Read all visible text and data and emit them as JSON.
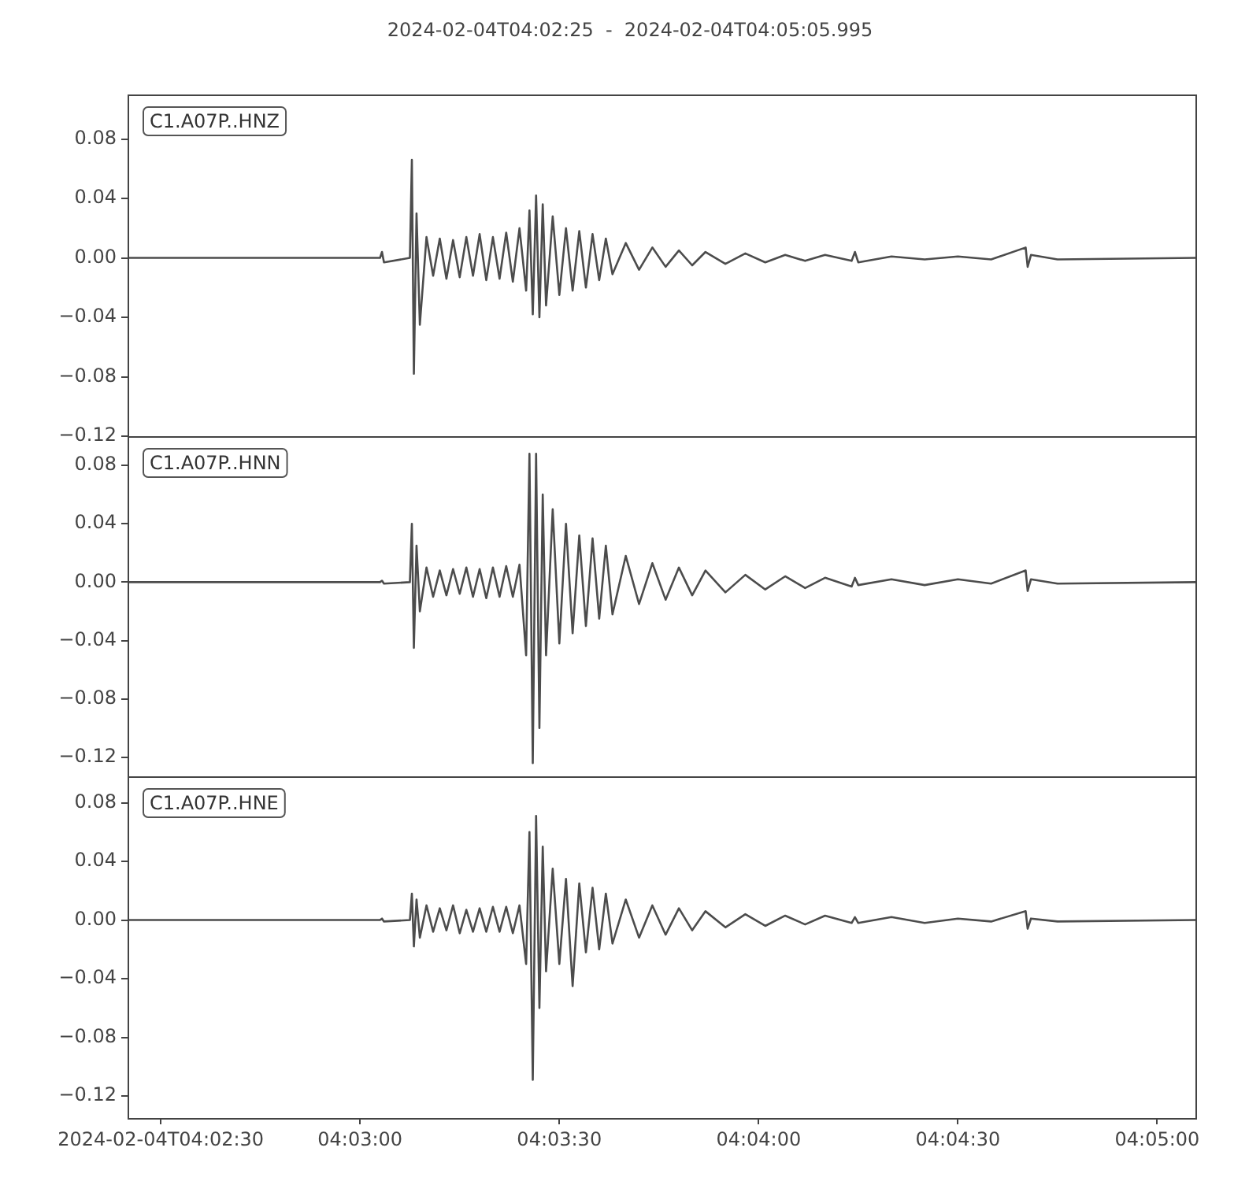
{
  "chart_data": [
    {
      "type": "line",
      "title": "2024-02-04T04:02:25  -  2024-02-04T04:05:05.995",
      "annotations": [
        "C1.A07P..HNZ"
      ],
      "tick_labels": "y",
      "grid": false,
      "legend": false,
      "marker": "none",
      "line_style": "solid",
      "xlim": [
        "2024-02-04T04:02:25",
        "2024-02-04T04:05:05.995"
      ],
      "ylim": [
        -0.12,
        0.11
      ],
      "yticks": [
        {
          "value": -0.12,
          "label": "−0.12"
        },
        {
          "value": -0.08,
          "label": "−0.08"
        },
        {
          "value": -0.04,
          "label": "−0.04"
        },
        {
          "value": 0,
          "label": "0.00"
        },
        {
          "value": 0.04,
          "label": "0.04"
        },
        {
          "value": 0.08,
          "label": "0.08"
        }
      ],
      "x": [
        "2024-02-04T04:02:25",
        "2024-02-04T04:03:03.0",
        "2024-02-04T04:03:03.3",
        "2024-02-04T04:03:03.6",
        "2024-02-04T04:03:07.5",
        "2024-02-04T04:03:07.8",
        "2024-02-04T04:03:08.1",
        "2024-02-04T04:03:08.5",
        "2024-02-04T04:03:09",
        "2024-02-04T04:03:10",
        "2024-02-04T04:03:11",
        "2024-02-04T04:03:12",
        "2024-02-04T04:03:13",
        "2024-02-04T04:03:14",
        "2024-02-04T04:03:15",
        "2024-02-04T04:03:16",
        "2024-02-04T04:03:17",
        "2024-02-04T04:03:18",
        "2024-02-04T04:03:19",
        "2024-02-04T04:03:20",
        "2024-02-04T04:03:21",
        "2024-02-04T04:03:22",
        "2024-02-04T04:03:23",
        "2024-02-04T04:03:24",
        "2024-02-04T04:03:25",
        "2024-02-04T04:03:25.5",
        "2024-02-04T04:03:26",
        "2024-02-04T04:03:26.5",
        "2024-02-04T04:03:27",
        "2024-02-04T04:03:27.5",
        "2024-02-04T04:03:28",
        "2024-02-04T04:03:29",
        "2024-02-04T04:03:30",
        "2024-02-04T04:03:31",
        "2024-02-04T04:03:32",
        "2024-02-04T04:03:33",
        "2024-02-04T04:03:34",
        "2024-02-04T04:03:35",
        "2024-02-04T04:03:36",
        "2024-02-04T04:03:37",
        "2024-02-04T04:03:38",
        "2024-02-04T04:03:40",
        "2024-02-04T04:03:42",
        "2024-02-04T04:03:44",
        "2024-02-04T04:03:46",
        "2024-02-04T04:03:48",
        "2024-02-04T04:03:50",
        "2024-02-04T04:03:52",
        "2024-02-04T04:03:55",
        "2024-02-04T04:03:58",
        "2024-02-04T04:04:01",
        "2024-02-04T04:04:04",
        "2024-02-04T04:04:07",
        "2024-02-04T04:04:10",
        "2024-02-04T04:04:14",
        "2024-02-04T04:04:14.5",
        "2024-02-04T04:04:15",
        "2024-02-04T04:04:20",
        "2024-02-04T04:04:25",
        "2024-02-04T04:04:30",
        "2024-02-04T04:04:35",
        "2024-02-04T04:04:40.2",
        "2024-02-04T04:04:40.5",
        "2024-02-04T04:04:41",
        "2024-02-04T04:04:45",
        "2024-02-04T04:05:05.9"
      ],
      "series": [
        {
          "color": "#4c4c4c",
          "values": [
            0,
            0,
            0.004,
            -0.003,
            0,
            0.066,
            -0.078,
            0.03,
            -0.045,
            0.014,
            -0.012,
            0.013,
            -0.014,
            0.012,
            -0.013,
            0.014,
            -0.012,
            0.016,
            -0.015,
            0.014,
            -0.014,
            0.017,
            -0.016,
            0.02,
            -0.022,
            0.032,
            -0.038,
            0.042,
            -0.04,
            0.036,
            -0.032,
            0.028,
            -0.025,
            0.02,
            -0.022,
            0.018,
            -0.02,
            0.016,
            -0.015,
            0.013,
            -0.011,
            0.01,
            -0.008,
            0.007,
            -0.006,
            0.005,
            -0.005,
            0.004,
            -0.004,
            0.003,
            -0.003,
            0.002,
            -0.002,
            0.002,
            -0.002,
            0.004,
            -0.003,
            0.001,
            -0.001,
            0.001,
            -0.001,
            0.007,
            -0.006,
            0.002,
            -0.001,
            0
          ]
        }
      ]
    },
    {
      "type": "line",
      "annotations": [
        "C1.A07P..HNN"
      ],
      "tick_labels": "y",
      "grid": false,
      "legend": false,
      "marker": "none",
      "line_style": "solid",
      "xlim": [
        "2024-02-04T04:02:25",
        "2024-02-04T04:05:05.995"
      ],
      "ylim": [
        -0.133,
        0.1
      ],
      "yticks": [
        {
          "value": -0.12,
          "label": "−0.12"
        },
        {
          "value": -0.08,
          "label": "−0.08"
        },
        {
          "value": -0.04,
          "label": "−0.04"
        },
        {
          "value": 0,
          "label": "0.00"
        },
        {
          "value": 0.04,
          "label": "0.04"
        },
        {
          "value": 0.08,
          "label": "0.08"
        }
      ],
      "x": [
        "2024-02-04T04:02:25",
        "2024-02-04T04:03:03.0",
        "2024-02-04T04:03:03.3",
        "2024-02-04T04:03:03.6",
        "2024-02-04T04:03:07.5",
        "2024-02-04T04:03:07.8",
        "2024-02-04T04:03:08.1",
        "2024-02-04T04:03:08.5",
        "2024-02-04T04:03:09",
        "2024-02-04T04:03:10",
        "2024-02-04T04:03:11",
        "2024-02-04T04:03:12",
        "2024-02-04T04:03:13",
        "2024-02-04T04:03:14",
        "2024-02-04T04:03:15",
        "2024-02-04T04:03:16",
        "2024-02-04T04:03:17",
        "2024-02-04T04:03:18",
        "2024-02-04T04:03:19",
        "2024-02-04T04:03:20",
        "2024-02-04T04:03:21",
        "2024-02-04T04:03:22",
        "2024-02-04T04:03:23",
        "2024-02-04T04:03:24",
        "2024-02-04T04:03:25",
        "2024-02-04T04:03:25.5",
        "2024-02-04T04:03:26",
        "2024-02-04T04:03:26.5",
        "2024-02-04T04:03:27",
        "2024-02-04T04:03:27.5",
        "2024-02-04T04:03:28",
        "2024-02-04T04:03:29",
        "2024-02-04T04:03:30",
        "2024-02-04T04:03:31",
        "2024-02-04T04:03:32",
        "2024-02-04T04:03:33",
        "2024-02-04T04:03:34",
        "2024-02-04T04:03:35",
        "2024-02-04T04:03:36",
        "2024-02-04T04:03:37",
        "2024-02-04T04:03:38",
        "2024-02-04T04:03:40",
        "2024-02-04T04:03:42",
        "2024-02-04T04:03:44",
        "2024-02-04T04:03:46",
        "2024-02-04T04:03:48",
        "2024-02-04T04:03:50",
        "2024-02-04T04:03:52",
        "2024-02-04T04:03:55",
        "2024-02-04T04:03:58",
        "2024-02-04T04:04:01",
        "2024-02-04T04:04:04",
        "2024-02-04T04:04:07",
        "2024-02-04T04:04:10",
        "2024-02-04T04:04:14",
        "2024-02-04T04:04:14.5",
        "2024-02-04T04:04:15",
        "2024-02-04T04:04:20",
        "2024-02-04T04:04:25",
        "2024-02-04T04:04:30",
        "2024-02-04T04:04:35",
        "2024-02-04T04:04:40.2",
        "2024-02-04T04:04:40.5",
        "2024-02-04T04:04:41",
        "2024-02-04T04:04:45",
        "2024-02-04T04:05:05.9"
      ],
      "series": [
        {
          "color": "#4c4c4c",
          "values": [
            0,
            0,
            0.001,
            -0.001,
            0,
            0.04,
            -0.045,
            0.025,
            -0.02,
            0.01,
            -0.01,
            0.008,
            -0.009,
            0.009,
            -0.008,
            0.01,
            -0.01,
            0.009,
            -0.011,
            0.01,
            -0.01,
            0.011,
            -0.01,
            0.012,
            -0.05,
            0.088,
            -0.124,
            0.088,
            -0.1,
            0.06,
            -0.05,
            0.05,
            -0.042,
            0.04,
            -0.035,
            0.032,
            -0.03,
            0.03,
            -0.025,
            0.025,
            -0.022,
            0.018,
            -0.015,
            0.013,
            -0.012,
            0.01,
            -0.009,
            0.008,
            -0.007,
            0.005,
            -0.005,
            0.004,
            -0.004,
            0.003,
            -0.003,
            0.003,
            -0.002,
            0.002,
            -0.002,
            0.002,
            -0.001,
            0.008,
            -0.006,
            0.002,
            -0.001,
            0
          ]
        }
      ]
    },
    {
      "type": "line",
      "annotations": [
        "C1.A07P..HNE"
      ],
      "grid": false,
      "legend": false,
      "marker": "none",
      "line_style": "solid",
      "xlim": [
        "2024-02-04T04:02:25",
        "2024-02-04T04:05:05.995"
      ],
      "xticks": [
        {
          "value": "2024-02-04T04:02:30",
          "label": "2024-02-04T04:02:30"
        },
        {
          "value": "2024-02-04T04:03:00",
          "label": "04:03:00"
        },
        {
          "value": "2024-02-04T04:03:30",
          "label": "04:03:30"
        },
        {
          "value": "2024-02-04T04:04:00",
          "label": "04:04:00"
        },
        {
          "value": "2024-02-04T04:04:30",
          "label": "04:04:30"
        },
        {
          "value": "2024-02-04T04:05:00",
          "label": "04:05:00"
        }
      ],
      "ylim": [
        -0.135,
        0.098
      ],
      "yticks": [
        {
          "value": -0.12,
          "label": "−0.12"
        },
        {
          "value": -0.08,
          "label": "−0.08"
        },
        {
          "value": -0.04,
          "label": "−0.04"
        },
        {
          "value": 0,
          "label": "0.00"
        },
        {
          "value": 0.04,
          "label": "0.04"
        },
        {
          "value": 0.08,
          "label": "0.08"
        }
      ],
      "x": [
        "2024-02-04T04:02:25",
        "2024-02-04T04:03:03.0",
        "2024-02-04T04:03:03.3",
        "2024-02-04T04:03:03.6",
        "2024-02-04T04:03:07.5",
        "2024-02-04T04:03:07.8",
        "2024-02-04T04:03:08.1",
        "2024-02-04T04:03:08.5",
        "2024-02-04T04:03:09",
        "2024-02-04T04:03:10",
        "2024-02-04T04:03:11",
        "2024-02-04T04:03:12",
        "2024-02-04T04:03:13",
        "2024-02-04T04:03:14",
        "2024-02-04T04:03:15",
        "2024-02-04T04:03:16",
        "2024-02-04T04:03:17",
        "2024-02-04T04:03:18",
        "2024-02-04T04:03:19",
        "2024-02-04T04:03:20",
        "2024-02-04T04:03:21",
        "2024-02-04T04:03:22",
        "2024-02-04T04:03:23",
        "2024-02-04T04:03:24",
        "2024-02-04T04:03:25",
        "2024-02-04T04:03:25.5",
        "2024-02-04T04:03:26",
        "2024-02-04T04:03:26.5",
        "2024-02-04T04:03:27",
        "2024-02-04T04:03:27.5",
        "2024-02-04T04:03:28",
        "2024-02-04T04:03:29",
        "2024-02-04T04:03:30",
        "2024-02-04T04:03:31",
        "2024-02-04T04:03:32",
        "2024-02-04T04:03:33",
        "2024-02-04T04:03:34",
        "2024-02-04T04:03:35",
        "2024-02-04T04:03:36",
        "2024-02-04T04:03:37",
        "2024-02-04T04:03:38",
        "2024-02-04T04:03:40",
        "2024-02-04T04:03:42",
        "2024-02-04T04:03:44",
        "2024-02-04T04:03:46",
        "2024-02-04T04:03:48",
        "2024-02-04T04:03:50",
        "2024-02-04T04:03:52",
        "2024-02-04T04:03:55",
        "2024-02-04T04:03:58",
        "2024-02-04T04:04:01",
        "2024-02-04T04:04:04",
        "2024-02-04T04:04:07",
        "2024-02-04T04:04:10",
        "2024-02-04T04:04:14",
        "2024-02-04T04:04:14.5",
        "2024-02-04T04:04:15",
        "2024-02-04T04:04:20",
        "2024-02-04T04:04:25",
        "2024-02-04T04:04:30",
        "2024-02-04T04:04:35",
        "2024-02-04T04:04:40.2",
        "2024-02-04T04:04:40.5",
        "2024-02-04T04:04:41",
        "2024-02-04T04:04:45",
        "2024-02-04T04:05:05.9"
      ],
      "series": [
        {
          "color": "#4c4c4c",
          "values": [
            0,
            0,
            0.001,
            -0.001,
            0,
            0.018,
            -0.018,
            0.014,
            -0.012,
            0.01,
            -0.008,
            0.008,
            -0.007,
            0.01,
            -0.009,
            0.007,
            -0.008,
            0.008,
            -0.008,
            0.009,
            -0.008,
            0.009,
            -0.009,
            0.01,
            -0.03,
            0.06,
            -0.109,
            0.071,
            -0.06,
            0.05,
            -0.035,
            0.035,
            -0.03,
            0.028,
            -0.045,
            0.025,
            -0.022,
            0.022,
            -0.02,
            0.018,
            -0.016,
            0.014,
            -0.012,
            0.01,
            -0.01,
            0.008,
            -0.007,
            0.006,
            -0.005,
            0.004,
            -0.004,
            0.003,
            -0.003,
            0.003,
            -0.002,
            0.002,
            -0.002,
            0.002,
            -0.002,
            0.001,
            -0.001,
            0.006,
            -0.006,
            0.001,
            -0.001,
            0
          ]
        }
      ]
    }
  ]
}
